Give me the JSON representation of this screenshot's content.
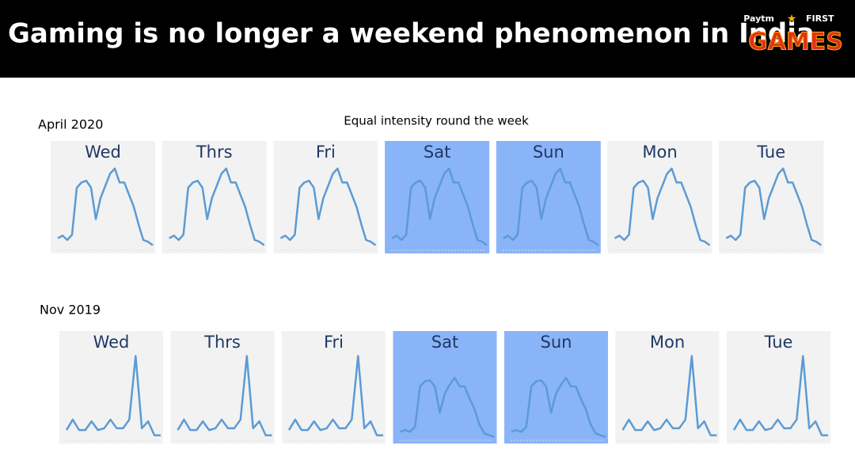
{
  "header": {
    "title": "Gaming is no longer a weekend phenomenon in India",
    "logo_top_left": "Paytm",
    "logo_top_right": "FIRST",
    "logo_main": "GAMES"
  },
  "chart_data": [
    {
      "type": "line",
      "title": "April 2020",
      "subtitle": "Equal intensity round the week",
      "ylim": [
        0,
        100
      ],
      "series": [
        {
          "name": "Wed",
          "color": "#5b9bd5",
          "background": "#f2f2f2",
          "values": [
            12,
            15,
            10,
            16,
            70,
            76,
            78,
            70,
            34,
            58,
            72,
            86,
            92,
            76,
            76,
            62,
            48,
            28,
            10,
            8,
            4
          ]
        },
        {
          "name": "Thrs",
          "color": "#5b9bd5",
          "background": "#f2f2f2",
          "values": [
            12,
            15,
            10,
            16,
            70,
            76,
            78,
            70,
            34,
            58,
            72,
            86,
            92,
            76,
            76,
            62,
            48,
            28,
            10,
            8,
            4
          ]
        },
        {
          "name": "Fri",
          "color": "#5b9bd5",
          "background": "#f2f2f2",
          "values": [
            12,
            15,
            10,
            16,
            70,
            76,
            78,
            70,
            34,
            58,
            72,
            86,
            92,
            76,
            76,
            62,
            48,
            28,
            10,
            8,
            4
          ]
        },
        {
          "name": "Sat",
          "color": "#5b9bd5",
          "background": "#8ab4f8",
          "values": [
            12,
            15,
            10,
            16,
            70,
            76,
            78,
            70,
            34,
            58,
            72,
            86,
            92,
            76,
            76,
            62,
            48,
            28,
            10,
            8,
            4
          ]
        },
        {
          "name": "Sun",
          "color": "#5b9bd5",
          "background": "#8ab4f8",
          "values": [
            12,
            15,
            10,
            16,
            70,
            76,
            78,
            70,
            34,
            58,
            72,
            86,
            92,
            76,
            76,
            62,
            48,
            28,
            10,
            8,
            4
          ]
        },
        {
          "name": "Mon",
          "color": "#5b9bd5",
          "background": "#f2f2f2",
          "values": [
            12,
            15,
            10,
            16,
            70,
            76,
            78,
            70,
            34,
            58,
            72,
            86,
            92,
            76,
            76,
            62,
            48,
            28,
            10,
            8,
            4
          ]
        },
        {
          "name": "Tue",
          "color": "#5b9bd5",
          "background": "#f2f2f2",
          "values": [
            12,
            15,
            10,
            16,
            70,
            76,
            78,
            70,
            34,
            58,
            72,
            86,
            92,
            76,
            76,
            62,
            48,
            28,
            10,
            8,
            4
          ]
        }
      ]
    },
    {
      "type": "line",
      "title": "Nov 2019",
      "ylim": [
        0,
        100
      ],
      "series": [
        {
          "name": "Wed",
          "color": "#5b9bd5",
          "background": "#f2f2f2",
          "values": [
            10,
            22,
            10,
            10,
            20,
            10,
            12,
            22,
            12,
            12,
            22,
            95,
            12,
            20,
            4,
            4
          ]
        },
        {
          "name": "Thrs",
          "color": "#5b9bd5",
          "background": "#f2f2f2",
          "values": [
            10,
            22,
            10,
            10,
            20,
            10,
            12,
            22,
            12,
            12,
            22,
            95,
            12,
            20,
            4,
            4
          ]
        },
        {
          "name": "Fri",
          "color": "#5b9bd5",
          "background": "#f2f2f2",
          "values": [
            10,
            22,
            10,
            10,
            20,
            10,
            12,
            22,
            12,
            12,
            22,
            95,
            12,
            20,
            4,
            4
          ]
        },
        {
          "name": "Sat",
          "color": "#5b9bd5",
          "background": "#8ab4f8",
          "values": [
            8,
            10,
            8,
            14,
            60,
            66,
            67,
            60,
            30,
            52,
            62,
            70,
            60,
            60,
            46,
            34,
            16,
            6,
            4,
            2
          ]
        },
        {
          "name": "Sun",
          "color": "#5b9bd5",
          "background": "#8ab4f8",
          "values": [
            8,
            10,
            8,
            14,
            60,
            66,
            67,
            60,
            30,
            52,
            62,
            70,
            60,
            60,
            46,
            34,
            16,
            6,
            4,
            2
          ]
        },
        {
          "name": "Mon",
          "color": "#5b9bd5",
          "background": "#f2f2f2",
          "values": [
            10,
            22,
            10,
            10,
            20,
            10,
            12,
            22,
            12,
            12,
            22,
            95,
            12,
            20,
            4,
            4
          ]
        },
        {
          "name": "Tue",
          "color": "#5b9bd5",
          "background": "#f2f2f2",
          "values": [
            10,
            22,
            10,
            10,
            20,
            10,
            12,
            22,
            12,
            12,
            22,
            95,
            12,
            20,
            4,
            4
          ]
        }
      ]
    }
  ]
}
